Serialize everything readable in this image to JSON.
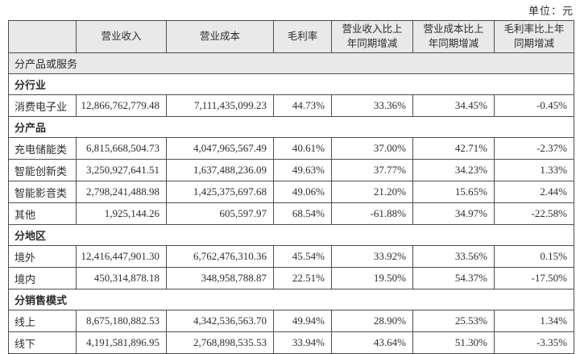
{
  "unit_label": "单位：元",
  "colors": {
    "header_bg": "#e9e9e9",
    "border": "#4d4d4d",
    "text": "#2d2d2d"
  },
  "table": {
    "columns": [
      "",
      "营业收入",
      "营业成本",
      "毛利率",
      "营业收入比上\n年同期增减",
      "营业成本比上\n年同期增减",
      "毛利率比上年\n同期增减"
    ],
    "rows": [
      {
        "type": "gray-section",
        "label": "分产品或服务"
      },
      {
        "type": "section",
        "label": "分行业"
      },
      {
        "type": "data",
        "label": "消费电子业",
        "values": [
          "12,866,762,779.48",
          "7,111,435,099.23",
          "44.73%",
          "33.36%",
          "34.45%",
          "-0.45%"
        ]
      },
      {
        "type": "section",
        "label": "分产品"
      },
      {
        "type": "data",
        "label": "充电储能类",
        "values": [
          "6,815,668,504.73",
          "4,047,965,567.49",
          "40.61%",
          "37.00%",
          "42.71%",
          "-2.37%"
        ]
      },
      {
        "type": "data",
        "label": "智能创新类",
        "values": [
          "3,250,927,641.51",
          "1,637,488,236.09",
          "49.63%",
          "37.77%",
          "34.23%",
          "1.33%"
        ]
      },
      {
        "type": "data",
        "label": "智能影音类",
        "values": [
          "2,798,241,488.98",
          "1,425,375,697.68",
          "49.06%",
          "21.20%",
          "15.65%",
          "2.44%"
        ]
      },
      {
        "type": "data",
        "label": "其他",
        "values": [
          "1,925,144.26",
          "605,597.97",
          "68.54%",
          "-61.88%",
          "34.97%",
          "-22.58%"
        ]
      },
      {
        "type": "section",
        "label": "分地区"
      },
      {
        "type": "data",
        "label": "境外",
        "values": [
          "12,416,447,901.30",
          "6,762,476,310.36",
          "45.54%",
          "33.92%",
          "33.56%",
          "0.15%"
        ]
      },
      {
        "type": "data",
        "label": "境内",
        "values": [
          "450,314,878.18",
          "348,958,788.87",
          "22.51%",
          "19.50%",
          "54.37%",
          "-17.50%"
        ]
      },
      {
        "type": "section",
        "label": "分销售模式"
      },
      {
        "type": "data",
        "label": "线上",
        "values": [
          "8,675,180,882.53",
          "4,342,536,563.70",
          "49.94%",
          "28.90%",
          "25.53%",
          "1.34%"
        ]
      },
      {
        "type": "data",
        "label": "线下",
        "values": [
          "4,191,581,896.95",
          "2,768,898,535.53",
          "33.94%",
          "43.64%",
          "51.30%",
          "-3.35%"
        ]
      }
    ]
  }
}
